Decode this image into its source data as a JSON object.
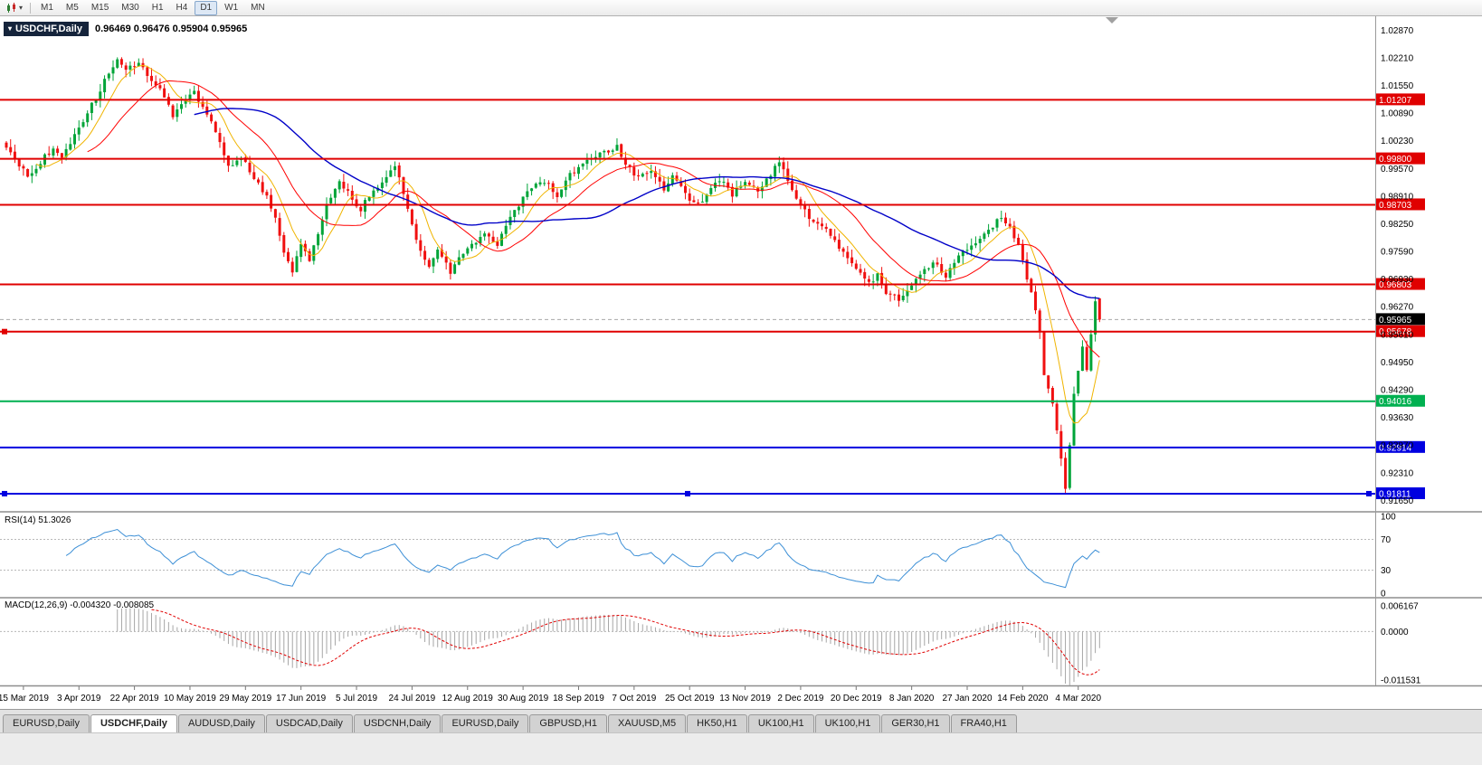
{
  "toolbar": {
    "timeframes": [
      "M1",
      "M5",
      "M15",
      "M30",
      "H1",
      "H4",
      "D1",
      "W1",
      "MN"
    ],
    "active": "D1"
  },
  "window": {
    "title_symbol": "USDCHF,Daily",
    "ohlc_text": "0.96469 0.96476 0.95904 0.95965"
  },
  "rsi": {
    "label": "RSI(14) 51.3026",
    "last": 51.3026,
    "ticks": [
      "100",
      "70",
      "30",
      "0"
    ],
    "upper_level": 70,
    "lower_level": 30,
    "line_color": "#3c8fd6"
  },
  "macd": {
    "label": "MACD(12,26,9) -0.004320 -0.008085",
    "macd_value": -0.00432,
    "signal_value": -0.008085,
    "ticks": [
      "0.006167",
      "0.0000",
      "-0.011531"
    ],
    "hist_color": "#a6a6a6",
    "signal_color": "#e00000",
    "range": [
      -0.012,
      0.007
    ]
  },
  "tabs": [
    {
      "label": "EURUSD,Daily",
      "active": false
    },
    {
      "label": "USDCHF,Daily",
      "active": true
    },
    {
      "label": "AUDUSD,Daily",
      "active": false
    },
    {
      "label": "USDCAD,Daily",
      "active": false
    },
    {
      "label": "USDCNH,Daily",
      "active": false
    },
    {
      "label": "EURUSD,Daily",
      "active": false
    },
    {
      "label": "GBPUSD,H1",
      "active": false
    },
    {
      "label": "XAUUSD,M5",
      "active": false
    },
    {
      "label": "HK50,H1",
      "active": false
    },
    {
      "label": "UK100,H1",
      "active": false
    },
    {
      "label": "UK100,H1",
      "active": false
    },
    {
      "label": "GER30,H1",
      "active": false
    },
    {
      "label": "FRA40,H1",
      "active": false
    }
  ],
  "chart_data": {
    "type": "candlestick",
    "symbol": "USDCHF",
    "period": "Daily",
    "bars": 257,
    "price_range": [
      0.914,
      1.032
    ],
    "last_bar": {
      "open": 0.96469,
      "high": 0.96476,
      "low": 0.95904,
      "close": 0.95965
    },
    "current_price": {
      "label": "0.95965",
      "value": 0.95965
    },
    "price_axis_ticks": [
      "1.02870",
      "1.02210",
      "1.01550",
      "1.00890",
      "1.00230",
      "0.99570",
      "0.98910",
      "0.98250",
      "0.97590",
      "0.96930",
      "0.96270",
      "0.95610",
      "0.94950",
      "0.94290",
      "0.93630",
      "0.92970",
      "0.92310",
      "0.91650"
    ],
    "date_labels": [
      "15 Mar 2019",
      "3 Apr 2019",
      "22 Apr 2019",
      "10 May 2019",
      "29 May 2019",
      "17 Jun 2019",
      "5 Jul 2019",
      "24 Jul 2019",
      "12 Aug 2019",
      "30 Aug 2019",
      "18 Sep 2019",
      "7 Oct 2019",
      "25 Oct 2019",
      "13 Nov 2019",
      "2 Dec 2019",
      "20 Dec 2019",
      "8 Jan 2020",
      "27 Jan 2020",
      "14 Feb 2020",
      "4 Mar 2020"
    ],
    "levels": [
      {
        "label": "1.01207",
        "value": 1.01207,
        "color": "#e00000",
        "handle": "none"
      },
      {
        "label": "0.99800",
        "value": 0.998,
        "color": "#e00000",
        "handle": "none"
      },
      {
        "label": "0.98703",
        "value": 0.98703,
        "color": "#e00000",
        "handle": "none"
      },
      {
        "label": "0.96803",
        "value": 0.96803,
        "color": "#e00000",
        "handle": "none"
      },
      {
        "label": "0.95678",
        "value": 0.95678,
        "color": "#e00000",
        "handle": "left"
      },
      {
        "label": "0.94016",
        "value": 0.94016,
        "color": "#00b050",
        "handle": "none"
      },
      {
        "label": "0.92914",
        "value": 0.92914,
        "color": "#0000e0",
        "handle": "none"
      },
      {
        "label": "0.91811",
        "value": 0.91811,
        "color": "#0000e0",
        "handle": "both"
      }
    ],
    "overlays": [
      {
        "name": "ma-fast",
        "window": 8,
        "color": "#f0b400",
        "width": 1
      },
      {
        "name": "ma-mid",
        "window": 20,
        "color": "#ff0000",
        "width": 1
      },
      {
        "name": "ma-slow",
        "window": 45,
        "color": "#0000c8",
        "width": 1.4
      }
    ],
    "colors": {
      "up": "#00a438",
      "down": "#f01010",
      "current_line": "#a8a8a8"
    },
    "close_path_anchors": [
      [
        0,
        1.0005
      ],
      [
        2,
        0.9985
      ],
      [
        5,
        0.9935
      ],
      [
        8,
        0.9972
      ],
      [
        11,
        1.0008
      ],
      [
        13,
        0.9988
      ],
      [
        15,
        1.0022
      ],
      [
        18,
        1.0072
      ],
      [
        21,
        1.0125
      ],
      [
        24,
        1.0188
      ],
      [
        26,
        1.0215
      ],
      [
        28,
        1.0192
      ],
      [
        31,
        1.0205
      ],
      [
        34,
        1.0172
      ],
      [
        37,
        1.0128
      ],
      [
        39,
        1.0085
      ],
      [
        41,
        1.0108
      ],
      [
        44,
        1.014
      ],
      [
        47,
        1.0088
      ],
      [
        50,
        1.0018
      ],
      [
        52,
        0.9958
      ],
      [
        55,
        0.9988
      ],
      [
        58,
        0.9932
      ],
      [
        61,
        0.9893
      ],
      [
        63,
        0.984
      ],
      [
        65,
        0.9752
      ],
      [
        67,
        0.9712
      ],
      [
        69,
        0.9778
      ],
      [
        71,
        0.9742
      ],
      [
        73,
        0.9802
      ],
      [
        75,
        0.9868
      ],
      [
        78,
        0.993
      ],
      [
        80,
        0.9898
      ],
      [
        83,
        0.9858
      ],
      [
        85,
        0.9892
      ],
      [
        88,
        0.9928
      ],
      [
        91,
        0.9958
      ],
      [
        93,
        0.9902
      ],
      [
        95,
        0.9828
      ],
      [
        97,
        0.9758
      ],
      [
        99,
        0.9718
      ],
      [
        101,
        0.9762
      ],
      [
        104,
        0.9712
      ],
      [
        106,
        0.9748
      ],
      [
        109,
        0.9772
      ],
      [
        112,
        0.9802
      ],
      [
        115,
        0.9778
      ],
      [
        117,
        0.9822
      ],
      [
        120,
        0.9872
      ],
      [
        123,
        0.9908
      ],
      [
        126,
        0.9928
      ],
      [
        129,
        0.9888
      ],
      [
        131,
        0.9932
      ],
      [
        134,
        0.9956
      ],
      [
        137,
        0.9986
      ],
      [
        140,
        0.9996
      ],
      [
        143,
        1.0008
      ],
      [
        145,
        0.9964
      ],
      [
        148,
        0.9934
      ],
      [
        151,
        0.9956
      ],
      [
        154,
        0.9904
      ],
      [
        156,
        0.9936
      ],
      [
        159,
        0.9894
      ],
      [
        162,
        0.9868
      ],
      [
        165,
        0.9906
      ],
      [
        167,
        0.9932
      ],
      [
        170,
        0.9894
      ],
      [
        173,
        0.9926
      ],
      [
        176,
        0.9904
      ],
      [
        179,
        0.9944
      ],
      [
        181,
        0.9978
      ],
      [
        183,
        0.9934
      ],
      [
        185,
        0.9882
      ],
      [
        188,
        0.9842
      ],
      [
        191,
        0.9822
      ],
      [
        193,
        0.9796
      ],
      [
        196,
        0.9756
      ],
      [
        199,
        0.9712
      ],
      [
        202,
        0.9682
      ],
      [
        204,
        0.9706
      ],
      [
        206,
        0.9664
      ],
      [
        209,
        0.9642
      ],
      [
        212,
        0.9682
      ],
      [
        215,
        0.9716
      ],
      [
        217,
        0.9732
      ],
      [
        220,
        0.9702
      ],
      [
        223,
        0.9746
      ],
      [
        226,
        0.9776
      ],
      [
        229,
        0.9802
      ],
      [
        231,
        0.9822
      ],
      [
        233,
        0.9842
      ],
      [
        235,
        0.9812
      ],
      [
        237,
        0.9772
      ],
      [
        239,
        0.9698
      ],
      [
        241,
        0.9618
      ],
      [
        242,
        0.956
      ],
      [
        243,
        0.9468
      ],
      [
        244,
        0.9428
      ],
      [
        245,
        0.9398
      ],
      [
        246,
        0.9338
      ],
      [
        247,
        0.9262
      ],
      [
        248,
        0.9192
      ],
      [
        249,
        0.9295
      ],
      [
        250,
        0.9415
      ],
      [
        251,
        0.9478
      ],
      [
        252,
        0.9532
      ],
      [
        253,
        0.9482
      ],
      [
        254,
        0.9558
      ],
      [
        255,
        0.9642
      ],
      [
        256,
        0.9597
      ]
    ],
    "sub_indicators": [
      "RSI(14)",
      "MACD(12,26,9)"
    ]
  }
}
